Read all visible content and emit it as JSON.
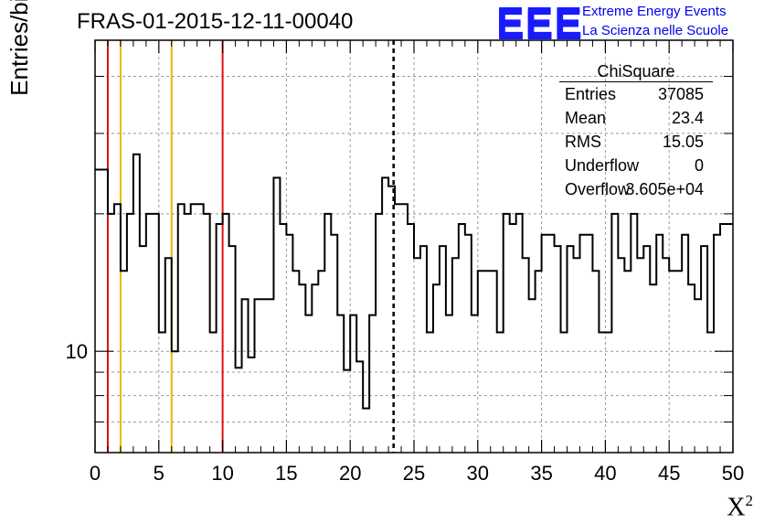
{
  "chart_data": {
    "type": "histogram",
    "title": "FRAS-01-2015-12-11-00040",
    "xlabel": "X",
    "xlabel_superscript": "2",
    "ylabel": "Entries/bin",
    "xlim": [
      0,
      50
    ],
    "ylim_log": [
      6,
      48
    ],
    "log_y": true,
    "grid": true,
    "bin_width": 0.5,
    "x_ticks": [
      "0",
      "5",
      "10",
      "15",
      "20",
      "25",
      "30",
      "35",
      "40",
      "45",
      "50"
    ],
    "y_tick_labels": [
      "10"
    ],
    "values": [
      25,
      25,
      20,
      21,
      15,
      20,
      27,
      17,
      20,
      20,
      11,
      16,
      10,
      21,
      20,
      21,
      21,
      20,
      11,
      19,
      20,
      17,
      9.2,
      13,
      9.7,
      13,
      13,
      13,
      24,
      19,
      18,
      15,
      14,
      12,
      14,
      15,
      20,
      18,
      12,
      9.1,
      12,
      9.5,
      7.5,
      12,
      20,
      24,
      23,
      21,
      21,
      19,
      16,
      17,
      11,
      14,
      17,
      12,
      16,
      19,
      18,
      12,
      15,
      15,
      15,
      11,
      20,
      19,
      20,
      16,
      13,
      15,
      18,
      18,
      17,
      11,
      17,
      16,
      18,
      18,
      15,
      11,
      11,
      20,
      16,
      15,
      20,
      16,
      17,
      14,
      18,
      16,
      15,
      15,
      18,
      14,
      13,
      17,
      11,
      18,
      19,
      19
    ],
    "vlines": [
      {
        "x": 1,
        "color": "#dd1111",
        "style": "solid"
      },
      {
        "x": 2,
        "color": "#e8b800",
        "style": "solid"
      },
      {
        "x": 6,
        "color": "#e8b800",
        "style": "solid"
      },
      {
        "x": 10,
        "color": "#dd1111",
        "style": "solid"
      },
      {
        "x": 23.4,
        "color": "#000000",
        "style": "dashed"
      }
    ],
    "stats": {
      "name": "ChiSquare",
      "rows": [
        {
          "key": "Entries",
          "value": "37085"
        },
        {
          "key": "Mean",
          "value": "23.4"
        },
        {
          "key": "RMS",
          "value": "15.05"
        },
        {
          "key": "Underflow",
          "value": "0"
        },
        {
          "key": "Overflow",
          "value": "3.605e+04"
        }
      ]
    }
  },
  "logo": {
    "mark": "EEE",
    "line1": "Extreme Energy Events",
    "line2": "La Scienza nelle Scuole",
    "color": "#1a1aff"
  }
}
